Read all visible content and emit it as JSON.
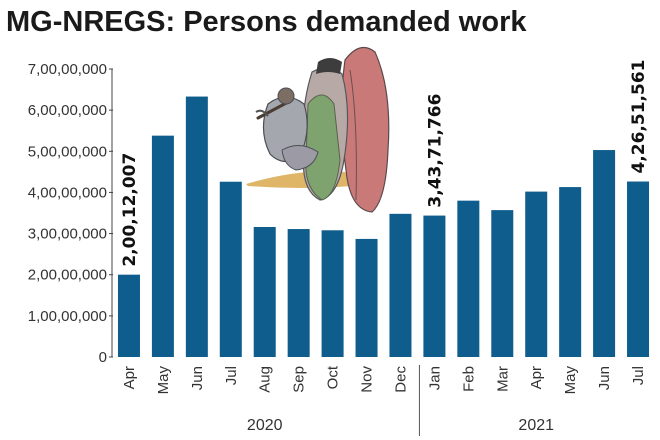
{
  "chart_data": {
    "type": "bar",
    "title": "MG-NREGS: Persons demanded work",
    "xlabel": "",
    "ylabel": "",
    "categories": [
      "Apr",
      "May",
      "Jun",
      "Jul",
      "Aug",
      "Sep",
      "Oct",
      "Nov",
      "Dec",
      "Jan",
      "Feb",
      "Mar",
      "Apr",
      "May",
      "Jun",
      "Jul"
    ],
    "values": [
      200120070,
      538000000,
      633000000,
      426000000,
      316000000,
      311000000,
      308000000,
      287000000,
      348000000,
      343717660,
      380000000,
      357000000,
      402000000,
      413000000,
      503000000,
      426515610
    ],
    "year_groups": [
      {
        "label": "2020",
        "count": 9
      },
      {
        "label": "2021",
        "count": 7
      }
    ],
    "yticks": [
      0,
      100000000,
      200000000,
      300000000,
      400000000,
      500000000,
      600000000,
      700000000
    ],
    "ytick_labels": [
      "0",
      "1,00,00,000",
      "2,00,00,000",
      "3,00,00,000",
      "4,00,00,000",
      "5,00,00,000",
      "6,00,00,000",
      "7,00,00,000"
    ],
    "ylim": [
      0,
      700000000
    ],
    "annotations": [
      {
        "index": 0,
        "text": "2,00,12,007"
      },
      {
        "index": 9,
        "text": "3,43,71,766"
      },
      {
        "index": 15,
        "text": "4,26,51,561"
      }
    ],
    "bar_color": "#0f5d8c",
    "grid": false,
    "legend": "none"
  }
}
